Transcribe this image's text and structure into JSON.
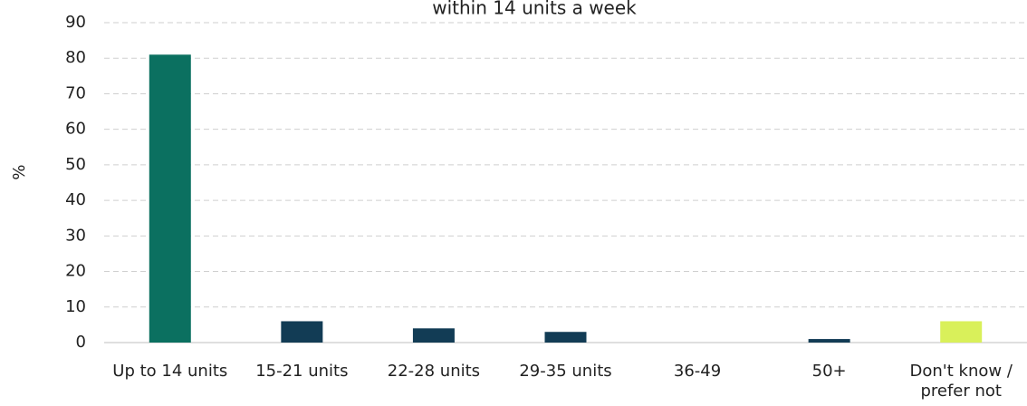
{
  "chart_data": {
    "type": "bar",
    "title": "within 14 units a week",
    "y_label": "%",
    "categories": [
      "Up to 14 units",
      "15-21 units",
      "22-28 units",
      "29-35 units",
      "36-49",
      "50+",
      "Don't know / prefer not"
    ],
    "values": [
      81,
      6,
      4,
      3,
      0,
      1,
      6
    ],
    "colors": [
      "#0b7060",
      "#123c55",
      "#123c55",
      "#123c55",
      "#123c55",
      "#123c55",
      "#d9f05a"
    ],
    "ylim": [
      0,
      90
    ],
    "yticks": [
      0,
      10,
      20,
      30,
      40,
      50,
      60,
      70,
      80,
      90
    ],
    "grid": true
  }
}
